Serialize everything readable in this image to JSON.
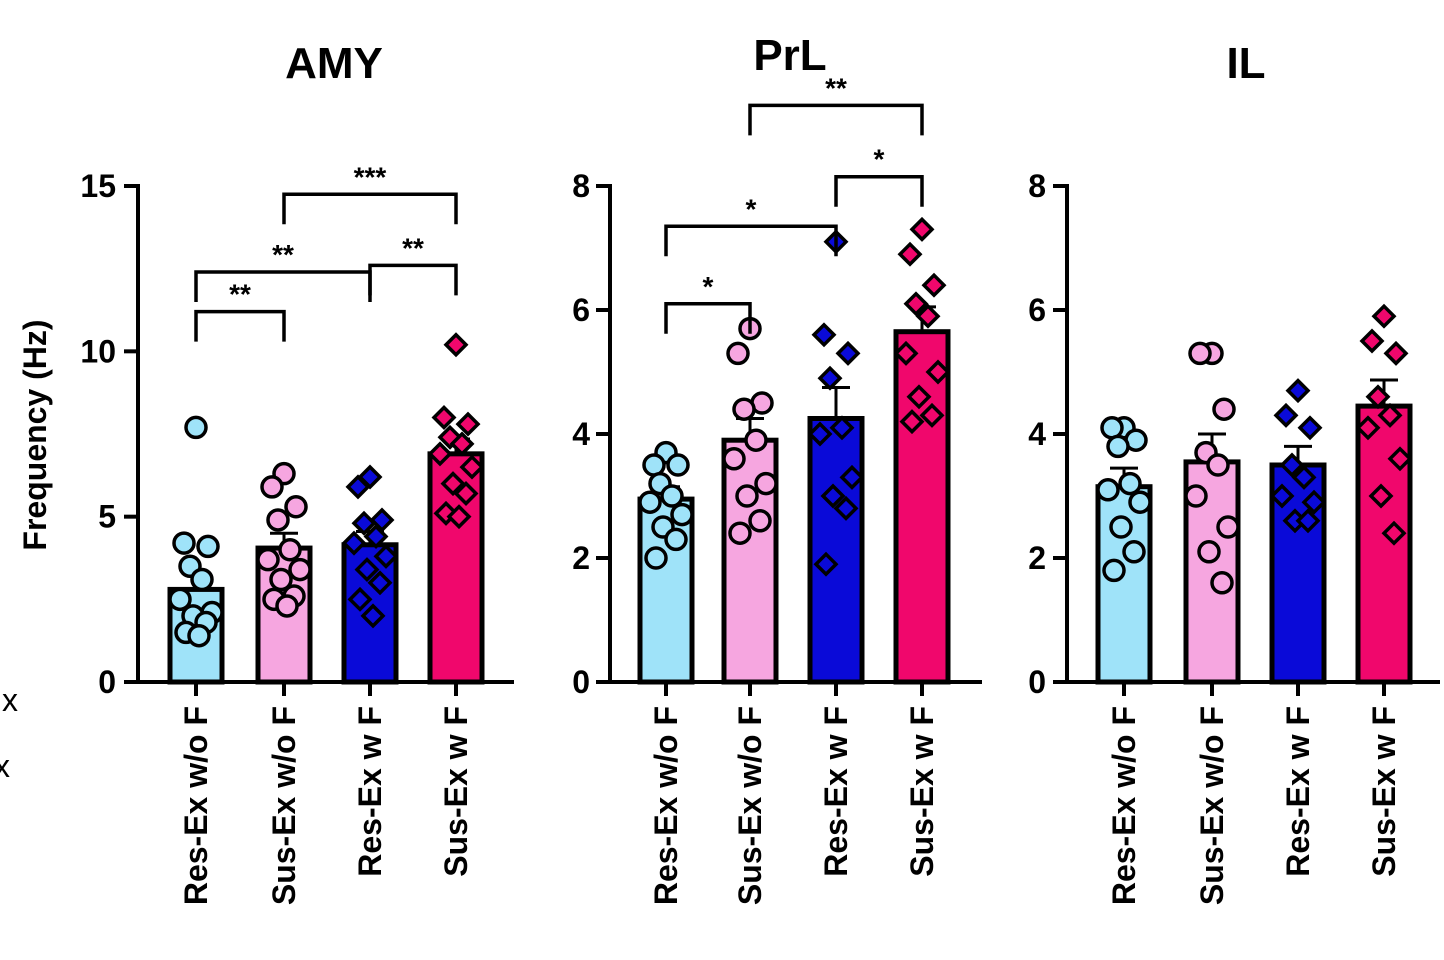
{
  "figure": {
    "ylabel": "Frequency (Hz)",
    "cropped_left_text": [
      "x",
      "x"
    ]
  },
  "colors": {
    "res_without_f": "#9fe3f9",
    "sus_without_f": "#f6a6e0",
    "res_with_f": "#0a0ad8",
    "sus_with_f": "#f0076c",
    "axis": "#000000"
  },
  "chart_data": [
    {
      "type": "bar",
      "title": "AMY",
      "xlabel": "",
      "ylabel": "Frequency (Hz)",
      "ylim": [
        0,
        15
      ],
      "yticks": [
        "0",
        "5",
        "10",
        "15"
      ],
      "ytick_values": [
        0,
        5,
        10,
        15
      ],
      "categories": [
        "Res-Ex w/o F",
        "Sus-Ex w/o F",
        "Res-Ex w F",
        "Sus-Ex w F"
      ],
      "values": [
        2.8,
        4.05,
        4.15,
        6.9
      ],
      "sem": [
        0.5,
        0.45,
        0.4,
        0.45
      ],
      "points": [
        [
          7.7,
          4.2,
          4.1,
          3.5,
          3.1,
          2.5,
          2.1,
          2.0,
          1.8,
          1.5,
          1.4
        ],
        [
          6.3,
          5.9,
          5.3,
          4.9,
          4.0,
          3.7,
          3.4,
          3.1,
          2.6,
          2.5,
          2.3
        ],
        [
          6.2,
          5.9,
          4.9,
          4.8,
          4.4,
          4.2,
          3.8,
          3.4,
          3.0,
          2.5,
          2.0
        ],
        [
          10.2,
          8.0,
          7.8,
          7.4,
          7.2,
          6.9,
          6.5,
          6.0,
          5.7,
          5.1,
          5.0
        ]
      ],
      "point_shapes": [
        "circle",
        "circle",
        "diamond",
        "diamond"
      ],
      "significance": [
        {
          "from": 0,
          "to": 1,
          "level": 11.2,
          "label": "**"
        },
        {
          "from": 0,
          "to": 2,
          "level": 12.4,
          "label": "**"
        },
        {
          "from": 2,
          "to": 3,
          "level": 12.6,
          "label": "**"
        },
        {
          "from": 1,
          "to": 3,
          "level": 14.75,
          "label": "***"
        }
      ]
    },
    {
      "type": "bar",
      "title": "PrL",
      "xlabel": "",
      "ylabel": "",
      "ylim": [
        0,
        8
      ],
      "yticks": [
        "0",
        "2",
        "4",
        "6",
        "8"
      ],
      "ytick_values": [
        0,
        2,
        4,
        6,
        8
      ],
      "categories": [
        "Res-Ex w/o F",
        "Sus-Ex w/o F",
        "Res-Ex w F",
        "Sus-Ex w F"
      ],
      "values": [
        2.95,
        3.9,
        4.25,
        5.65
      ],
      "sem": [
        0.2,
        0.35,
        0.5,
        0.4
      ],
      "points": [
        [
          3.7,
          3.5,
          3.5,
          3.2,
          3.0,
          2.9,
          2.7,
          2.5,
          2.3,
          2.0
        ],
        [
          5.7,
          5.3,
          4.5,
          4.4,
          3.9,
          3.6,
          3.2,
          3.0,
          2.6,
          2.4
        ],
        [
          7.1,
          5.6,
          5.3,
          4.9,
          4.1,
          4.0,
          3.3,
          3.0,
          2.8,
          1.9
        ],
        [
          7.3,
          6.9,
          6.4,
          6.1,
          5.9,
          5.3,
          5.0,
          4.6,
          4.3,
          4.2
        ]
      ],
      "point_shapes": [
        "circle",
        "circle",
        "diamond",
        "diamond"
      ],
      "significance": [
        {
          "from": 0,
          "to": 1,
          "level": 6.1,
          "label": "*"
        },
        {
          "from": 0,
          "to": 2,
          "level": 7.35,
          "label": "*"
        },
        {
          "from": 2,
          "to": 3,
          "level": 8.15,
          "label": "*"
        },
        {
          "from": 1,
          "to": 3,
          "level": 9.3,
          "label": "**"
        }
      ]
    },
    {
      "type": "bar",
      "title": "IL",
      "xlabel": "",
      "ylabel": "",
      "ylim": [
        0,
        8
      ],
      "yticks": [
        "0",
        "2",
        "4",
        "6",
        "8"
      ],
      "ytick_values": [
        0,
        2,
        4,
        6,
        8
      ],
      "categories": [
        "Res-Ex w/o F",
        "Sus-Ex w/o F",
        "Res-Ex w F",
        "Sus-Ex w F"
      ],
      "values": [
        3.15,
        3.55,
        3.5,
        4.45
      ],
      "sem": [
        0.3,
        0.45,
        0.3,
        0.42
      ],
      "points": [
        [
          4.1,
          4.1,
          3.9,
          3.8,
          3.2,
          3.1,
          2.9,
          2.5,
          2.1,
          1.8
        ],
        [
          5.3,
          5.3,
          4.4,
          3.7,
          3.5,
          3.0,
          2.5,
          2.1,
          1.6
        ],
        [
          4.7,
          4.3,
          4.1,
          3.5,
          3.3,
          3.0,
          2.9,
          2.6,
          2.6
        ],
        [
          5.9,
          5.5,
          5.3,
          4.6,
          4.3,
          4.1,
          3.6,
          3.0,
          2.4
        ]
      ],
      "point_shapes": [
        "circle",
        "circle",
        "diamond",
        "diamond"
      ],
      "significance": []
    }
  ]
}
